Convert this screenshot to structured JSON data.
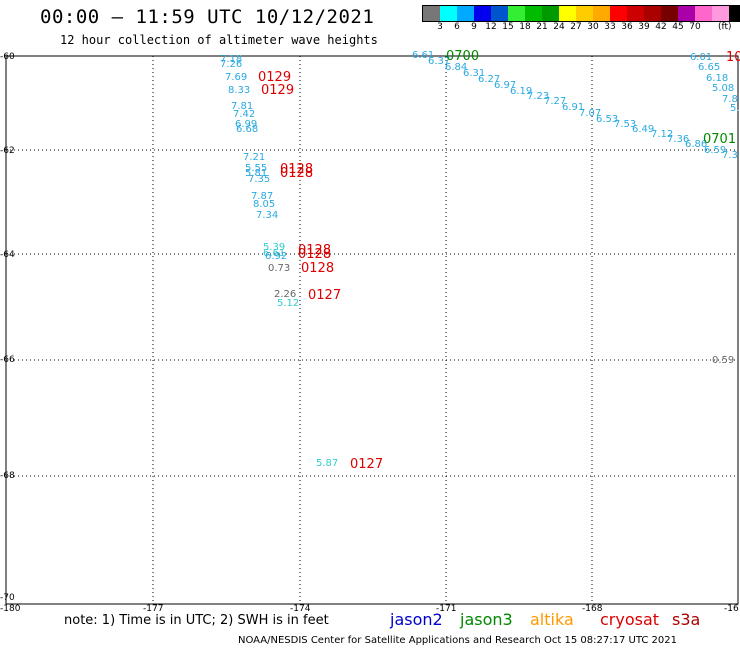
{
  "header": {
    "title": "00:00 – 11:59 UTC 10/12/2021",
    "subtitle": "12 hour collection of altimeter wave heights"
  },
  "legend": {
    "colors": [
      "#777777",
      "#00ffff",
      "#00aaff",
      "#0000ee",
      "#0055cc",
      "#33ee33",
      "#00bb00",
      "#009900",
      "#ffff00",
      "#ffcc00",
      "#ffaa00",
      "#ff0000",
      "#cc0000",
      "#aa0000",
      "#770000",
      "#aa00aa",
      "#ff66cc",
      "#ff99dd",
      "#000000"
    ],
    "labels": [
      "3",
      "6",
      "9",
      "12",
      "15",
      "18",
      "21",
      "24",
      "27",
      "30",
      "33",
      "36",
      "39",
      "42",
      "45",
      "70"
    ],
    "unit": "(ft)"
  },
  "axes": {
    "y_ticks": [
      "-60",
      "-62",
      "-64",
      "-66",
      "-68",
      "-70"
    ],
    "x_ticks": [
      "-180",
      "-177",
      "-174",
      "-171",
      "-168",
      "-16"
    ]
  },
  "observations": [
    {
      "text": "7.18",
      "color": "#29a9e1"
    },
    {
      "text": "7.26",
      "color": "#29a9e1"
    },
    {
      "text": "7.69",
      "color": "#29a9e1"
    },
    {
      "text": "8.33",
      "color": "#29a9e1"
    },
    {
      "text": "7.81",
      "color": "#29a9e1"
    },
    {
      "text": "7.42",
      "color": "#29a9e1"
    },
    {
      "text": "6.99",
      "color": "#29a9e1"
    },
    {
      "text": "6.68",
      "color": "#29a9e1"
    },
    {
      "text": "7.21",
      "color": "#29a9e1"
    },
    {
      "text": "5.55",
      "color": "#29a9e1"
    },
    {
      "text": "5.81",
      "color": "#29a9e1"
    },
    {
      "text": "7.35",
      "color": "#29a9e1"
    },
    {
      "text": "7.87",
      "color": "#29a9e1"
    },
    {
      "text": "8.05",
      "color": "#29a9e1"
    },
    {
      "text": "7.34",
      "color": "#29a9e1"
    },
    {
      "text": "5.39",
      "color": "#33cccc"
    },
    {
      "text": "6.61",
      "color": "#33cccc"
    },
    {
      "text": "6.92",
      "color": "#29a9e1"
    },
    {
      "text": "0.73",
      "color": "#666666"
    },
    {
      "text": "2.26",
      "color": "#666666"
    },
    {
      "text": "5.12",
      "color": "#33cccc"
    },
    {
      "text": "5.87",
      "color": "#33cccc"
    },
    {
      "text": "6.61",
      "color": "#29a9e1"
    },
    {
      "text": "6.37",
      "color": "#29a9e1"
    },
    {
      "text": "6.84",
      "color": "#29a9e1"
    },
    {
      "text": "6.31",
      "color": "#29a9e1"
    },
    {
      "text": "6.27",
      "color": "#29a9e1"
    },
    {
      "text": "6.97",
      "color": "#29a9e1"
    },
    {
      "text": "6.19",
      "color": "#29a9e1"
    },
    {
      "text": "7.23",
      "color": "#29a9e1"
    },
    {
      "text": "7.27",
      "color": "#29a9e1"
    },
    {
      "text": "6.91",
      "color": "#29a9e1"
    },
    {
      "text": "7.07",
      "color": "#29a9e1"
    },
    {
      "text": "6.53",
      "color": "#29a9e1"
    },
    {
      "text": "7.53",
      "color": "#29a9e1"
    },
    {
      "text": "6.49",
      "color": "#29a9e1"
    },
    {
      "text": "7.12",
      "color": "#29a9e1"
    },
    {
      "text": "7.36",
      "color": "#29a9e1"
    },
    {
      "text": "6.86",
      "color": "#29a9e1"
    },
    {
      "text": "6.59",
      "color": "#29a9e1"
    },
    {
      "text": "7.3",
      "color": "#29a9e1"
    },
    {
      "text": "6.01",
      "color": "#29a9e1"
    },
    {
      "text": "6.65",
      "color": "#29a9e1"
    },
    {
      "text": "6.18",
      "color": "#29a9e1"
    },
    {
      "text": "5.08",
      "color": "#29a9e1"
    },
    {
      "text": "7.8",
      "color": "#29a9e1"
    },
    {
      "text": "5.",
      "color": "#29a9e1"
    },
    {
      "text": "0.59",
      "color": "#666666"
    }
  ],
  "tags": [
    {
      "text": "0129",
      "color": "#dd0000"
    },
    {
      "text": "0129",
      "color": "#dd0000"
    },
    {
      "text": "0128",
      "color": "#dd0000"
    },
    {
      "text": "0128",
      "color": "#dd0000"
    },
    {
      "text": "0128",
      "color": "#dd0000"
    },
    {
      "text": "0128",
      "color": "#dd0000"
    },
    {
      "text": "0128",
      "color": "#dd0000"
    },
    {
      "text": "0127",
      "color": "#dd0000"
    },
    {
      "text": "0127",
      "color": "#dd0000"
    },
    {
      "text": "0700",
      "color": "#008800"
    },
    {
      "text": "0701",
      "color": "#008800"
    },
    {
      "text": "10",
      "color": "#dd0000"
    }
  ],
  "footer": {
    "note": "note: 1) Time is in UTC; 2) SWH is in feet",
    "satellites": [
      {
        "text": "jason2",
        "color": "#0000cc"
      },
      {
        "text": "jason3",
        "color": "#008800"
      },
      {
        "text": "altika",
        "color": "#ff9900"
      },
      {
        "text": "cryosat",
        "color": "#dd0000"
      },
      {
        "text": "s3a",
        "color": "#aa0000"
      }
    ],
    "credit": "NOAA/NESDIS Center for Satellite Applications and Research    Oct 15 08:27:17 UTC 2021"
  }
}
